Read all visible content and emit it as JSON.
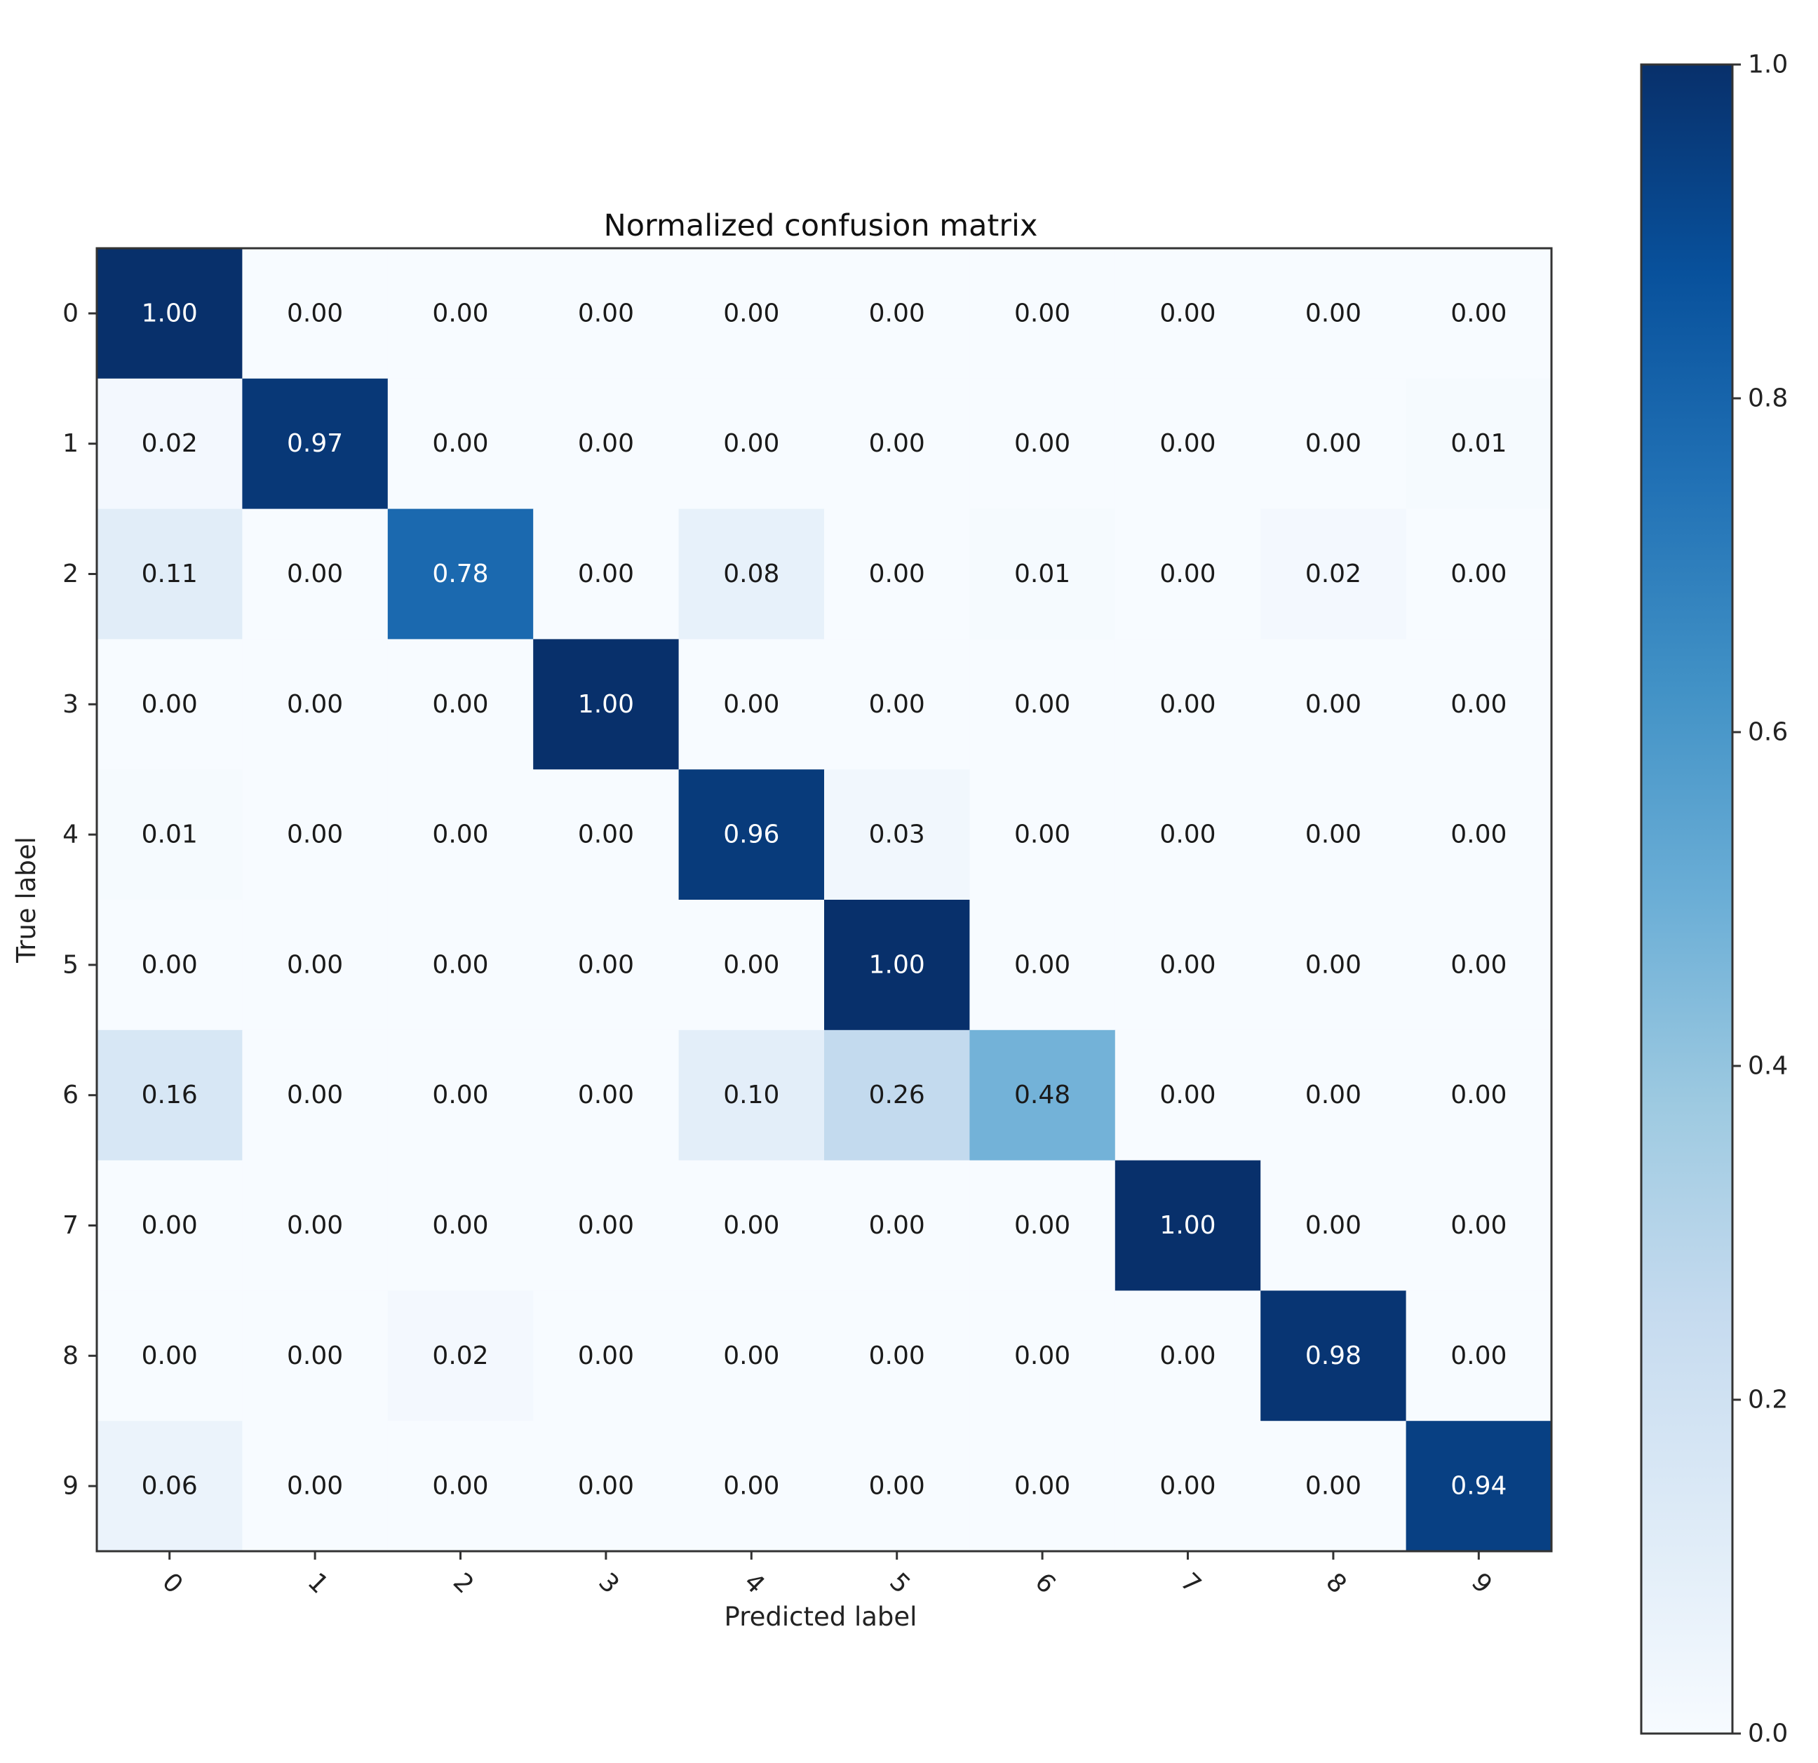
{
  "chart_data": {
    "type": "heatmap",
    "title": "Normalized confusion matrix",
    "xlabel": "Predicted label",
    "ylabel": "True label",
    "x_tick_labels": [
      "0",
      "1",
      "2",
      "3",
      "4",
      "5",
      "6",
      "7",
      "8",
      "9"
    ],
    "y_tick_labels": [
      "0",
      "1",
      "2",
      "3",
      "4",
      "5",
      "6",
      "7",
      "8",
      "9"
    ],
    "value_labels": [
      [
        "1.00",
        "0.00",
        "0.00",
        "0.00",
        "0.00",
        "0.00",
        "0.00",
        "0.00",
        "0.00",
        "0.00"
      ],
      [
        "0.02",
        "0.97",
        "0.00",
        "0.00",
        "0.00",
        "0.00",
        "0.00",
        "0.00",
        "0.00",
        "0.01"
      ],
      [
        "0.11",
        "0.00",
        "0.78",
        "0.00",
        "0.08",
        "0.00",
        "0.01",
        "0.00",
        "0.02",
        "0.00"
      ],
      [
        "0.00",
        "0.00",
        "0.00",
        "1.00",
        "0.00",
        "0.00",
        "0.00",
        "0.00",
        "0.00",
        "0.00"
      ],
      [
        "0.01",
        "0.00",
        "0.00",
        "0.00",
        "0.96",
        "0.03",
        "0.00",
        "0.00",
        "0.00",
        "0.00"
      ],
      [
        "0.00",
        "0.00",
        "0.00",
        "0.00",
        "0.00",
        "1.00",
        "0.00",
        "0.00",
        "0.00",
        "0.00"
      ],
      [
        "0.16",
        "0.00",
        "0.00",
        "0.00",
        "0.10",
        "0.26",
        "0.48",
        "0.00",
        "0.00",
        "0.00"
      ],
      [
        "0.00",
        "0.00",
        "0.00",
        "0.00",
        "0.00",
        "0.00",
        "0.00",
        "1.00",
        "0.00",
        "0.00"
      ],
      [
        "0.00",
        "0.00",
        "0.02",
        "0.00",
        "0.00",
        "0.00",
        "0.00",
        "0.00",
        "0.98",
        "0.00"
      ],
      [
        "0.06",
        "0.00",
        "0.00",
        "0.00",
        "0.00",
        "0.00",
        "0.00",
        "0.00",
        "0.00",
        "0.94"
      ]
    ],
    "colormap": "Blues",
    "color_range": [
      0.0,
      1.0
    ],
    "colorbar_ticks": [
      "0.0",
      "0.2",
      "0.4",
      "0.6",
      "0.8",
      "1.0"
    ],
    "colorbar_tick_values": [
      0.0,
      0.2,
      0.4,
      0.6,
      0.8,
      1.0
    ],
    "text_threshold": 0.5,
    "grid": false
  },
  "colors": {
    "text_light": "#ffffff",
    "text_dark": "#1a1a1a",
    "frame": "#333333",
    "blues": [
      "#f7fbff",
      "#deebf7",
      "#c6dbef",
      "#9ecae1",
      "#6baed6",
      "#4292c6",
      "#2171b5",
      "#08519c",
      "#08306b"
    ]
  }
}
